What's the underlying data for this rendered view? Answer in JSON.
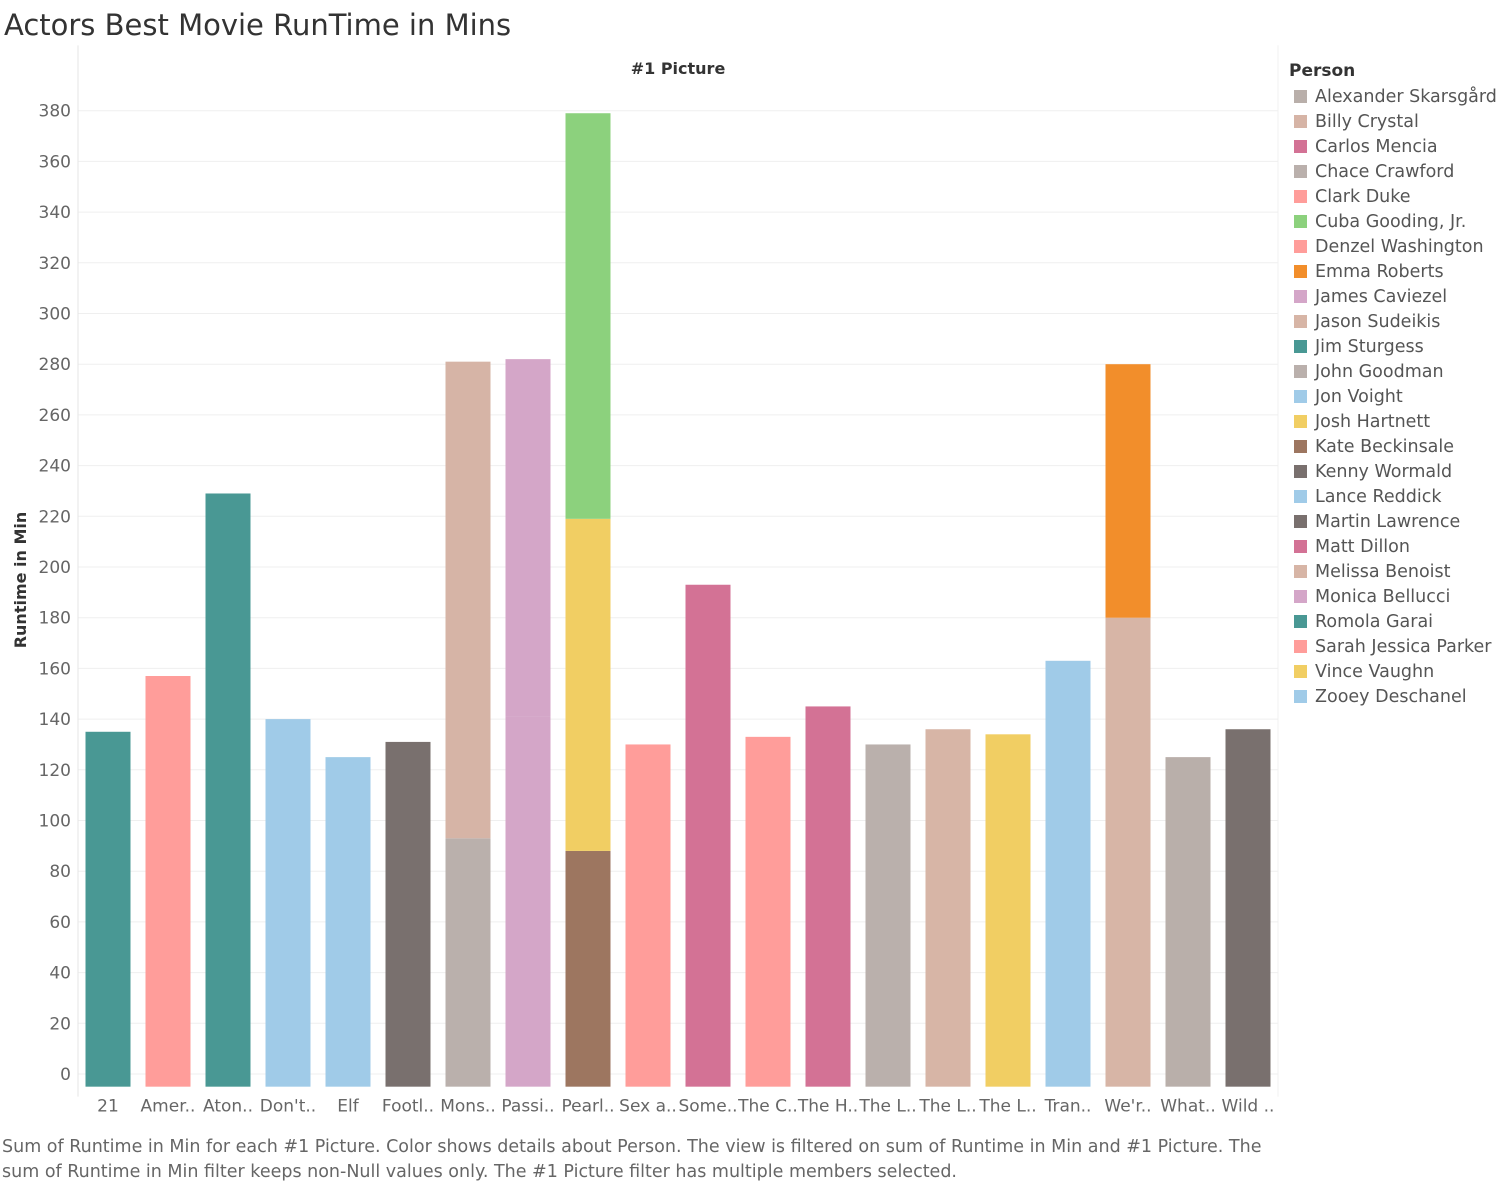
{
  "chart_data": {
    "type": "bar",
    "stacked": true,
    "title": "Actors Best Movie RunTime in Mins",
    "column_header": "#1 Picture",
    "ylabel": "Runtime in Min",
    "xlabel": "",
    "ylim": [
      -5,
      390
    ],
    "yticks": [
      0,
      20,
      40,
      60,
      80,
      100,
      120,
      140,
      160,
      180,
      200,
      220,
      240,
      260,
      280,
      300,
      320,
      340,
      360,
      380
    ],
    "grid": true,
    "legend_position": "right",
    "legend_title": "Person",
    "categories": [
      "21",
      "Amer..",
      "Aton..",
      "Don't..",
      "Elf",
      "Footl..",
      "Mons..",
      "Passi..",
      "Pearl..",
      "Sex a..",
      "Some..",
      "The C..",
      "The H..",
      "The L..",
      "The L..",
      "The L..",
      "Tran..",
      "We'r..",
      "What..",
      "Wild .."
    ],
    "bars": [
      {
        "category": "21",
        "segments": [
          {
            "person": "Jim Sturgess",
            "value": 135
          }
        ]
      },
      {
        "category": "Amer..",
        "segments": [
          {
            "person": "Denzel Washington",
            "value": 157
          }
        ]
      },
      {
        "category": "Aton..",
        "segments": [
          {
            "person": "Romola Garai",
            "value": 229
          }
        ]
      },
      {
        "category": "Don't..",
        "segments": [
          {
            "person": "Zooey Deschanel",
            "value": 140
          }
        ]
      },
      {
        "category": "Elf",
        "segments": [
          {
            "person": "Zooey Deschanel",
            "value": 125
          }
        ]
      },
      {
        "category": "Footl..",
        "segments": [
          {
            "person": "Kenny Wormald",
            "value": 131
          }
        ]
      },
      {
        "category": "Mons..",
        "segments": [
          {
            "person": "John Goodman",
            "value": 93
          },
          {
            "person": "Billy Crystal",
            "value": 188
          }
        ]
      },
      {
        "category": "Passi..",
        "segments": [
          {
            "person": "James Caviezel",
            "value": 141
          },
          {
            "person": "Monica Bellucci",
            "value": 141
          }
        ]
      },
      {
        "category": "Pearl..",
        "segments": [
          {
            "person": "Kate Beckinsale",
            "value": 88
          },
          {
            "person": "Josh Hartnett",
            "value": 131
          },
          {
            "person": "Cuba Gooding, Jr.",
            "value": 160
          }
        ]
      },
      {
        "category": "Sex a..",
        "segments": [
          {
            "person": "Sarah Jessica Parker",
            "value": 130
          }
        ]
      },
      {
        "category": "Some..",
        "segments": [
          {
            "person": "Carlos Mencia",
            "value": 193
          }
        ]
      },
      {
        "category": "The C..",
        "segments": [
          {
            "person": "Clark Duke",
            "value": 133
          }
        ]
      },
      {
        "category": "The H..",
        "segments": [
          {
            "person": "Matt Dillon",
            "value": 145
          }
        ]
      },
      {
        "category": "The L..",
        "segments": [
          {
            "person": "Chace Crawford",
            "value": 130
          }
        ]
      },
      {
        "category": "The L..",
        "segments": [
          {
            "person": "Melissa Benoist",
            "value": 136
          }
        ]
      },
      {
        "category": "The L..",
        "segments": [
          {
            "person": "Vince Vaughn",
            "value": 134
          }
        ]
      },
      {
        "category": "Tran..",
        "segments": [
          {
            "person": "Jon Voight",
            "value": 163
          }
        ]
      },
      {
        "category": "We'r..",
        "segments": [
          {
            "person": "Jason Sudeikis",
            "value": 180
          },
          {
            "person": "Emma Roberts",
            "value": 100
          }
        ]
      },
      {
        "category": "What..",
        "segments": [
          {
            "person": "Alexander Skarsgård",
            "value": 125
          }
        ]
      },
      {
        "category": "Wild ..",
        "segments": [
          {
            "person": "Martin Lawrence",
            "value": 136
          }
        ]
      }
    ],
    "legend": [
      {
        "name": "Alexander Skarsgård",
        "color": "#b9afaa"
      },
      {
        "name": "Billy Crystal",
        "color": "#d6b4a6"
      },
      {
        "name": "Carlos Mencia",
        "color": "#d37295"
      },
      {
        "name": "Chace Crawford",
        "color": "#bab0ac"
      },
      {
        "name": "Clark Duke",
        "color": "#ff9d9a"
      },
      {
        "name": "Cuba Gooding, Jr.",
        "color": "#8cd17d"
      },
      {
        "name": "Denzel Washington",
        "color": "#ff9d9a"
      },
      {
        "name": "Emma Roberts",
        "color": "#f28e2b"
      },
      {
        "name": "James Caviezel",
        "color": "#d4a6c8"
      },
      {
        "name": "Jason Sudeikis",
        "color": "#d7b5a6"
      },
      {
        "name": "Jim Sturgess",
        "color": "#499894"
      },
      {
        "name": "John Goodman",
        "color": "#bab0ac"
      },
      {
        "name": "Jon Voight",
        "color": "#a0cbe8"
      },
      {
        "name": "Josh Hartnett",
        "color": "#f1ce63"
      },
      {
        "name": "Kate Beckinsale",
        "color": "#9d7660"
      },
      {
        "name": "Kenny Wormald",
        "color": "#79706e"
      },
      {
        "name": "Lance Reddick",
        "color": "#a0cbe8"
      },
      {
        "name": "Martin Lawrence",
        "color": "#79706e"
      },
      {
        "name": "Matt Dillon",
        "color": "#d37295"
      },
      {
        "name": "Melissa Benoist",
        "color": "#d7b5a6"
      },
      {
        "name": "Monica Bellucci",
        "color": "#d4a6c8"
      },
      {
        "name": "Romola Garai",
        "color": "#499894"
      },
      {
        "name": "Sarah Jessica Parker",
        "color": "#ff9d9a"
      },
      {
        "name": "Vince Vaughn",
        "color": "#f1ce63"
      },
      {
        "name": "Zooey Deschanel",
        "color": "#a0cbe8"
      }
    ]
  },
  "caption": "Sum of Runtime in Min for each #1 Picture.  Color shows details about Person. The view is filtered on sum of Runtime in Min and #1 Picture. The sum of Runtime in Min filter keeps non-Null values only. The #1 Picture filter has multiple members selected."
}
